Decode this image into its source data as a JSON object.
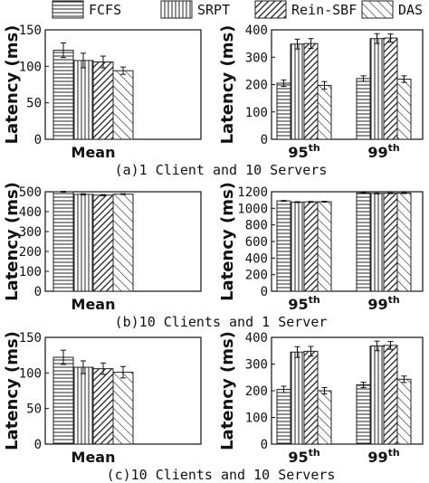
{
  "legend": [
    {
      "name": "FCFS",
      "pattern": "hlines"
    },
    {
      "name": "SRPT",
      "pattern": "vlines"
    },
    {
      "name": "Rein-SBF",
      "pattern": "diag-dense"
    },
    {
      "name": "DAS",
      "pattern": "diag-sparse"
    }
  ],
  "chart_data": [
    {
      "type": "bar",
      "caption": "(a)1 Client and 10 Servers",
      "ylabel": "Latency (ms)",
      "grid": false,
      "legend_position": "top",
      "left": {
        "categories": [
          {
            "base": "Mean",
            "sup": ""
          }
        ],
        "ylim": [
          0,
          150
        ],
        "yticks": [
          "0",
          "50",
          "100",
          "150"
        ],
        "series": [
          {
            "name": "FCFS",
            "values": [
              122
            ],
            "errors": [
              10
            ]
          },
          {
            "name": "SRPT",
            "values": [
              108
            ],
            "errors": [
              10
            ]
          },
          {
            "name": "Rein-SBF",
            "values": [
              106
            ],
            "errors": [
              8
            ]
          },
          {
            "name": "DAS",
            "values": [
              94
            ],
            "errors": [
              5
            ]
          }
        ]
      },
      "right": {
        "categories": [
          {
            "base": "95",
            "sup": "th"
          },
          {
            "base": "99",
            "sup": "th"
          }
        ],
        "ylim": [
          0,
          400
        ],
        "yticks": [
          "0",
          "100",
          "200",
          "300",
          "400"
        ],
        "series": [
          {
            "name": "FCFS",
            "values": [
              205,
              222
            ],
            "errors": [
              12,
              10
            ]
          },
          {
            "name": "SRPT",
            "values": [
              348,
              368
            ],
            "errors": [
              18,
              18
            ]
          },
          {
            "name": "Rein-SBF",
            "values": [
              350,
              370
            ],
            "errors": [
              18,
              15
            ]
          },
          {
            "name": "DAS",
            "values": [
              197,
              220
            ],
            "errors": [
              14,
              12
            ]
          }
        ]
      }
    },
    {
      "type": "bar",
      "caption": "(b)10 Clients and 1 Server",
      "ylabel": "Latency (ms)",
      "grid": false,
      "legend_position": "top",
      "left": {
        "categories": [
          {
            "base": "Mean",
            "sup": ""
          }
        ],
        "ylim": [
          0,
          500
        ],
        "yticks": [
          "0",
          "100",
          "200",
          "300",
          "400",
          "500"
        ],
        "series": [
          {
            "name": "FCFS",
            "values": [
              500
            ],
            "errors": [
              2
            ]
          },
          {
            "name": "SRPT",
            "values": [
              487
            ],
            "errors": [
              3
            ]
          },
          {
            "name": "Rein-SBF",
            "values": [
              483
            ],
            "errors": [
              3
            ]
          },
          {
            "name": "DAS",
            "values": [
              488
            ],
            "errors": [
              2
            ]
          }
        ]
      },
      "right": {
        "categories": [
          {
            "base": "95",
            "sup": "th"
          },
          {
            "base": "99",
            "sup": "th"
          }
        ],
        "ylim": [
          0,
          1200
        ],
        "yticks": [
          "0",
          "200",
          "400",
          "600",
          "800",
          "1000",
          "1200"
        ],
        "series": [
          {
            "name": "FCFS",
            "values": [
              1090,
              1185
            ],
            "errors": [
              5,
              5
            ]
          },
          {
            "name": "SRPT",
            "values": [
              1075,
              1180
            ],
            "errors": [
              5,
              5
            ]
          },
          {
            "name": "Rein-SBF",
            "values": [
              1078,
              1182
            ],
            "errors": [
              5,
              5
            ]
          },
          {
            "name": "DAS",
            "values": [
              1080,
              1183
            ],
            "errors": [
              5,
              5
            ]
          }
        ]
      }
    },
    {
      "type": "bar",
      "caption": "(c)10 Clients and 10 Servers",
      "ylabel": "Latency (ms)",
      "grid": false,
      "legend_position": "top",
      "left": {
        "categories": [
          {
            "base": "Mean",
            "sup": ""
          }
        ],
        "ylim": [
          0,
          150
        ],
        "yticks": [
          "0",
          "50",
          "100",
          "150"
        ],
        "series": [
          {
            "name": "FCFS",
            "values": [
              122
            ],
            "errors": [
              10
            ]
          },
          {
            "name": "SRPT",
            "values": [
              108
            ],
            "errors": [
              9
            ]
          },
          {
            "name": "Rein-SBF",
            "values": [
              106
            ],
            "errors": [
              8
            ]
          },
          {
            "name": "DAS",
            "values": [
              101
            ],
            "errors": [
              8
            ]
          }
        ]
      },
      "right": {
        "categories": [
          {
            "base": "95",
            "sup": "th"
          },
          {
            "base": "99",
            "sup": "th"
          }
        ],
        "ylim": [
          0,
          400
        ],
        "yticks": [
          "0",
          "100",
          "200",
          "300",
          "400"
        ],
        "series": [
          {
            "name": "FCFS",
            "values": [
              205,
              222
            ],
            "errors": [
              12,
              10
            ]
          },
          {
            "name": "SRPT",
            "values": [
              345,
              368
            ],
            "errors": [
              20,
              18
            ]
          },
          {
            "name": "Rein-SBF",
            "values": [
              348,
              370
            ],
            "errors": [
              18,
              15
            ]
          },
          {
            "name": "DAS",
            "values": [
              200,
              243
            ],
            "errors": [
              12,
              12
            ]
          }
        ]
      }
    }
  ]
}
